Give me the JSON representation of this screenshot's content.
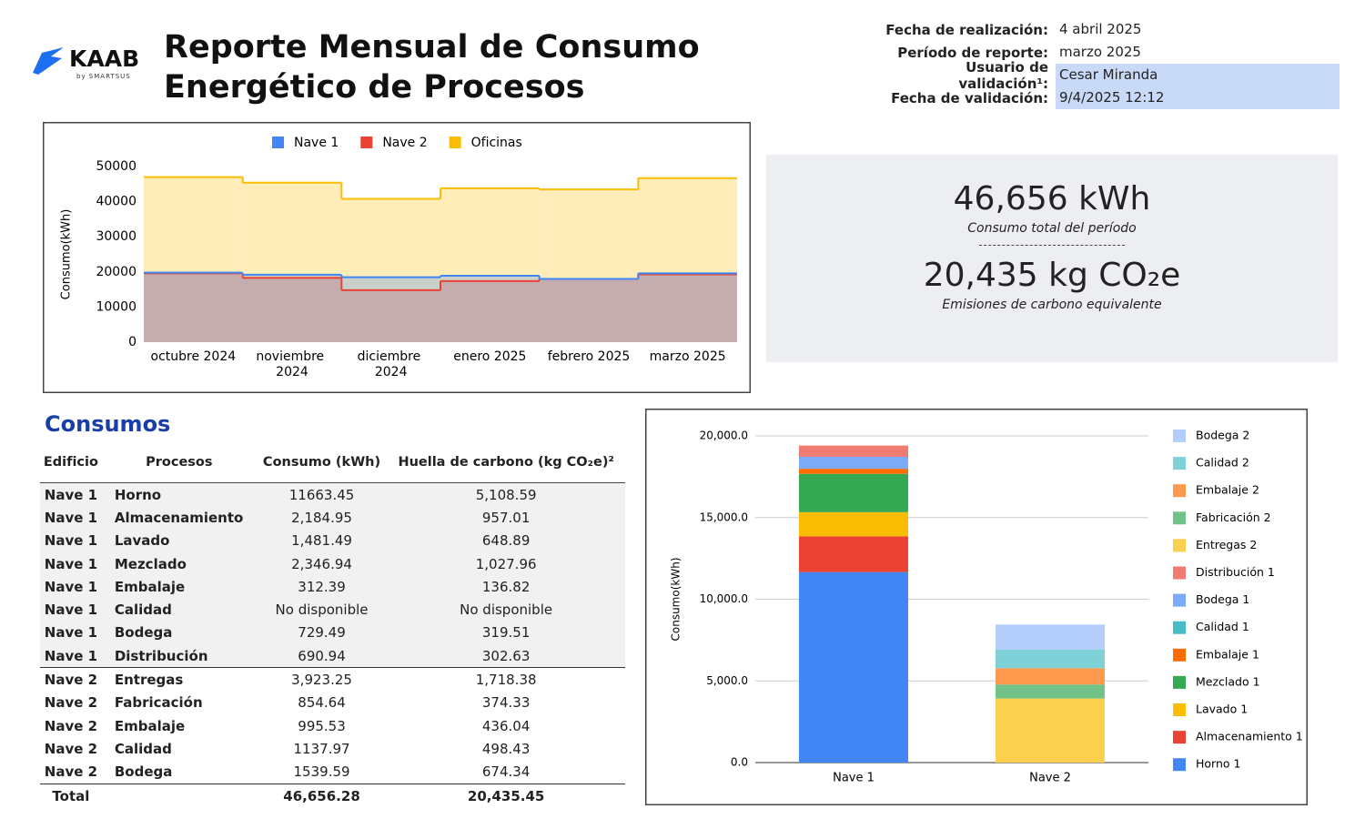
{
  "header": {
    "logo": "KAAB",
    "logo_sub": "by SMARTSUS",
    "title": "Reporte Mensual de Consumo Energético de Procesos"
  },
  "info": [
    {
      "label": "Fecha de realización:",
      "value": "4 abril 2025"
    },
    {
      "label": "Período de reporte:",
      "value": "marzo 2025"
    },
    {
      "label": "Usuario de validación¹:",
      "value": "Cesar Miranda"
    },
    {
      "label": "Fecha de validación:",
      "value": "9/4/2025 12:12"
    }
  ],
  "kpis": [
    {
      "value": "46,656 kWh",
      "caption": "Consumo total del período"
    },
    {
      "value": "20,435 kg CO₂e",
      "caption": "Emisiones de carbono equivalente"
    }
  ],
  "table": {
    "title": "Consumos",
    "headers": [
      "Edificio",
      "Procesos",
      "Consumo (kWh)",
      "Huella de carbono (kg CO₂e)²"
    ],
    "rows": [
      [
        "Nave 1",
        "Horno",
        "11663.45",
        "5,108.59"
      ],
      [
        "Nave 1",
        "Almacenamiento",
        "2,184.95",
        "957.01"
      ],
      [
        "Nave 1",
        "Lavado",
        "1,481.49",
        "648.89"
      ],
      [
        "Nave 1",
        "Mezclado",
        "2,346.94",
        "1,027.96"
      ],
      [
        "Nave 1",
        "Embalaje",
        "312.39",
        "136.82"
      ],
      [
        "Nave 1",
        "Calidad",
        "No disponible",
        "No disponible"
      ],
      [
        "Nave 1",
        "Bodega",
        "729.49",
        "319.51"
      ],
      [
        "Nave 1",
        "Distribución",
        "690.94",
        "302.63"
      ],
      [
        "Nave 2",
        "Entregas",
        "3,923.25",
        "1,718.38"
      ],
      [
        "Nave 2",
        "Fabricación",
        "854.64",
        "374.33"
      ],
      [
        "Nave 2",
        "Embalaje",
        "995.53",
        "436.04"
      ],
      [
        "Nave 2",
        "Calidad",
        "1137.97",
        "498.43"
      ],
      [
        "Nave 2",
        "Bodega",
        "1539.59",
        "674.34"
      ]
    ],
    "total": {
      "label": "Total",
      "consumo": "46,656.28",
      "huella": "20,435.45"
    }
  },
  "chart_data": [
    {
      "type": "step-area",
      "y_label": "Consumo(kWh)",
      "categories": [
        "octubre 2024",
        "noviembre 2024",
        "diciembre 2024",
        "enero 2025",
        "febrero 2025",
        "marzo 2025"
      ],
      "series": [
        {
          "name": "Nave 1",
          "color": "#4285f4",
          "values": [
            19800,
            19200,
            18500,
            18900,
            18000,
            19600
          ]
        },
        {
          "name": "Nave 2",
          "color": "#ea4335",
          "values": [
            19600,
            18300,
            14800,
            17400,
            18000,
            19300
          ]
        },
        {
          "name": "Oficinas",
          "color": "#fbbc04",
          "values": [
            47000,
            45400,
            40800,
            43800,
            43500,
            46700
          ]
        }
      ],
      "ylim": [
        0,
        50000
      ],
      "yticks": [
        0,
        10000,
        20000,
        30000,
        40000,
        50000
      ],
      "legend": "top"
    },
    {
      "type": "stacked-bar",
      "y_label": "Consumo(kWh)",
      "categories": [
        "Nave 1",
        "Nave 2"
      ],
      "series": [
        {
          "name": "Horno 1",
          "color": "#4285f4",
          "values": [
            11663.45,
            null
          ]
        },
        {
          "name": "Almacenamiento 1",
          "color": "#ea4335",
          "values": [
            2184.95,
            null
          ]
        },
        {
          "name": "Lavado 1",
          "color": "#fbbc04",
          "values": [
            1481.49,
            null
          ]
        },
        {
          "name": "Mezclado 1",
          "color": "#34a853",
          "values": [
            2346.94,
            null
          ]
        },
        {
          "name": "Embalaje 1",
          "color": "#ff6d01",
          "values": [
            312.39,
            null
          ]
        },
        {
          "name": "Calidad 1",
          "color": "#46bdc6",
          "values": [
            null,
            null
          ]
        },
        {
          "name": "Bodega 1",
          "color": "#7baaf7",
          "values": [
            729.49,
            null
          ]
        },
        {
          "name": "Distribución 1",
          "color": "#f07b72",
          "values": [
            690.94,
            null
          ]
        },
        {
          "name": "Entregas 2",
          "color": "#fcd04f",
          "values": [
            null,
            3923.25
          ]
        },
        {
          "name": "Fabricación 2",
          "color": "#71c287",
          "values": [
            null,
            854.64
          ]
        },
        {
          "name": "Embalaje 2",
          "color": "#ff994d",
          "values": [
            null,
            995.53
          ]
        },
        {
          "name": "Calidad 2",
          "color": "#7ed1d7",
          "values": [
            null,
            1137.97
          ]
        },
        {
          "name": "Bodega 2",
          "color": "#b3cefb",
          "values": [
            null,
            1539.59
          ]
        }
      ],
      "ylim": [
        0,
        20000
      ],
      "yticks": [
        {
          "value": 0,
          "label": "0.0"
        },
        {
          "value": 5000,
          "label": "5,000.0"
        },
        {
          "value": 10000,
          "label": "10,000.0"
        },
        {
          "value": 15000,
          "label": "15,000.0"
        },
        {
          "value": 20000,
          "label": "20,000.0"
        }
      ],
      "grid": true,
      "legend": "right"
    }
  ]
}
